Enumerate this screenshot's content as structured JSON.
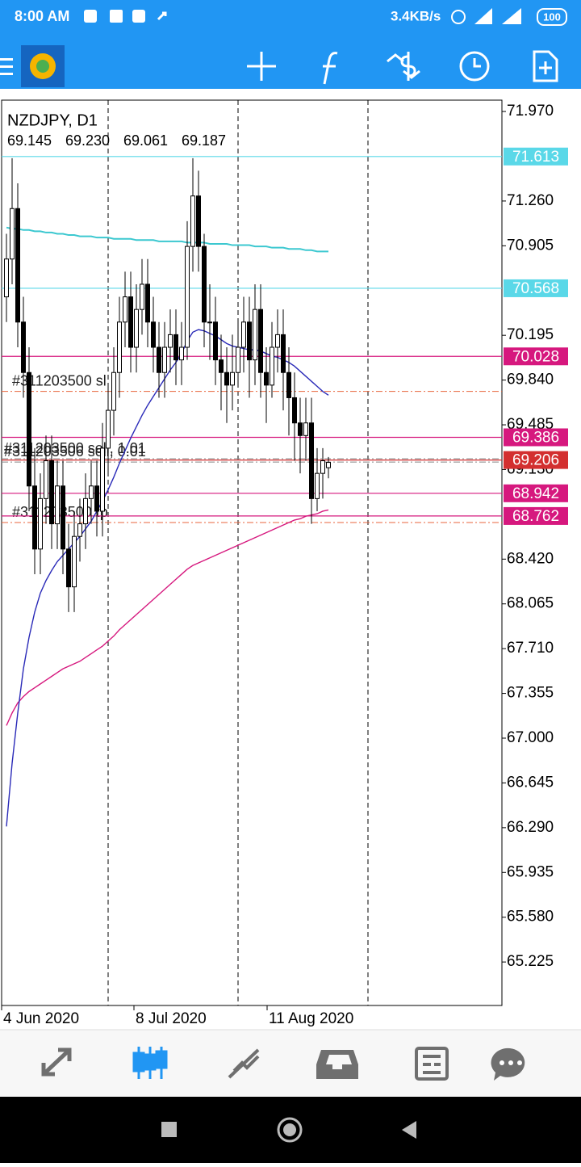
{
  "status_bar": {
    "time": "8:00 AM",
    "speed": "3.4KB/s",
    "battery": "100"
  },
  "chart_data": {
    "type": "candlestick",
    "title": "NZDJPY, D1",
    "ohlc_text": [
      "69.145",
      "69.230",
      "69.061",
      "69.187"
    ],
    "ylim": [
      64.88,
      72.06
    ],
    "yticks": [
      {
        "value": 71.97,
        "label": "71.970"
      },
      {
        "value": 71.26,
        "label": "71.260"
      },
      {
        "value": 70.905,
        "label": "70.905"
      },
      {
        "value": 70.195,
        "label": "70.195"
      },
      {
        "value": 69.84,
        "label": "69.840"
      },
      {
        "value": 69.485,
        "label": "69.485"
      },
      {
        "value": 69.13,
        "label": "69.130"
      },
      {
        "value": 68.42,
        "label": "68.420"
      },
      {
        "value": 68.065,
        "label": "68.065"
      },
      {
        "value": 67.71,
        "label": "67.710"
      },
      {
        "value": 67.355,
        "label": "67.355"
      },
      {
        "value": 67,
        "label": "67.000"
      },
      {
        "value": 66.645,
        "label": "66.645"
      },
      {
        "value": 66.29,
        "label": "66.290"
      },
      {
        "value": 65.935,
        "label": "65.935"
      },
      {
        "value": 65.58,
        "label": "65.580"
      },
      {
        "value": 65.225,
        "label": "65.225"
      }
    ],
    "x_labels": [
      "4 Jun 2020",
      "8 Jul 2020",
      "11 Aug 2020"
    ],
    "open": [
      70.5,
      70.8,
      71.2,
      70.3,
      69.9,
      69.0,
      68.5,
      68.9,
      69.2,
      68.7,
      69.0,
      68.5,
      68.2,
      68.6,
      68.7,
      68.9,
      69.0,
      68.8,
      69.3,
      69.6,
      69.9,
      70.3,
      70.5,
      70.1,
      70.4,
      70.6,
      70.3,
      70.1,
      69.9,
      70.1,
      70.2,
      70.0,
      70.1,
      70.9,
      71.3,
      70.9,
      70.3,
      70.3,
      70.0,
      69.9,
      69.8,
      69.9,
      70.1,
      70.3,
      70.0,
      70.4,
      69.9,
      69.8,
      70.1,
      70.2,
      69.9,
      69.7,
      69.5,
      69.4,
      69.5,
      68.9,
      69.1,
      69.145
    ],
    "high": [
      71.0,
      71.6,
      71.4,
      70.5,
      70.1,
      69.3,
      69.1,
      69.4,
      69.4,
      69.2,
      69.2,
      68.7,
      68.8,
      68.9,
      69.1,
      69.2,
      69.2,
      69.5,
      69.8,
      70.1,
      70.5,
      70.7,
      70.7,
      70.6,
      70.8,
      70.8,
      70.5,
      70.3,
      70.3,
      70.4,
      70.4,
      70.3,
      71.1,
      71.6,
      71.5,
      71.0,
      70.6,
      70.5,
      70.2,
      70.1,
      70.2,
      70.3,
      70.5,
      70.5,
      70.6,
      70.6,
      70.1,
      70.3,
      70.4,
      70.4,
      70.1,
      69.9,
      69.7,
      69.7,
      69.7,
      69.3,
      69.3,
      69.23
    ],
    "low": [
      70.3,
      70.6,
      70.1,
      69.7,
      68.8,
      68.3,
      68.3,
      68.7,
      68.5,
      68.5,
      68.3,
      68.0,
      68.0,
      68.4,
      68.5,
      68.7,
      68.6,
      68.6,
      69.1,
      69.4,
      69.7,
      70.1,
      69.9,
      69.9,
      70.2,
      70.1,
      69.9,
      69.7,
      69.7,
      69.9,
      69.8,
      69.8,
      70.0,
      70.7,
      70.7,
      70.1,
      70.0,
      69.8,
      69.6,
      69.5,
      69.6,
      69.8,
      69.9,
      69.7,
      69.8,
      69.7,
      69.5,
      69.7,
      69.9,
      69.6,
      69.4,
      69.2,
      69.1,
      69.2,
      68.7,
      68.8,
      68.9,
      69.061
    ],
    "close": [
      70.8,
      71.2,
      70.3,
      69.9,
      69.0,
      68.5,
      68.9,
      69.2,
      68.7,
      69.0,
      68.5,
      68.2,
      68.6,
      68.7,
      68.9,
      69.0,
      68.8,
      69.3,
      69.6,
      69.9,
      70.3,
      70.5,
      70.1,
      70.4,
      70.6,
      70.3,
      70.1,
      69.9,
      70.1,
      70.2,
      70.0,
      70.1,
      70.9,
      71.3,
      70.9,
      70.3,
      70.3,
      70.0,
      69.9,
      69.8,
      69.9,
      70.1,
      70.3,
      70.0,
      70.4,
      69.9,
      69.8,
      70.1,
      70.2,
      69.9,
      69.7,
      69.5,
      69.4,
      69.5,
      68.9,
      69.1,
      69.2,
      69.187
    ],
    "moving_averages": [
      {
        "color": "#3cc8d0",
        "values": [
          71.05,
          71.04,
          71.04,
          71.03,
          71.03,
          71.02,
          71.02,
          71.01,
          71.01,
          71.0,
          71.0,
          70.99,
          70.99,
          70.98,
          70.98,
          70.98,
          70.97,
          70.97,
          70.97,
          70.96,
          70.96,
          70.96,
          70.96,
          70.95,
          70.95,
          70.95,
          70.95,
          70.94,
          70.94,
          70.94,
          70.94,
          70.94,
          70.93,
          70.93,
          70.93,
          70.93,
          70.92,
          70.92,
          70.92,
          70.92,
          70.91,
          70.91,
          70.91,
          70.91,
          70.9,
          70.9,
          70.9,
          70.89,
          70.89,
          70.89,
          70.88,
          70.88,
          70.88,
          70.87,
          70.87,
          70.86,
          70.86,
          70.86
        ]
      },
      {
        "color": "#d6187e",
        "values": [
          67.1,
          67.2,
          67.28,
          67.33,
          67.37,
          67.4,
          67.43,
          67.46,
          67.49,
          67.52,
          67.55,
          67.57,
          67.59,
          67.61,
          67.64,
          67.67,
          67.7,
          67.73,
          67.77,
          67.81,
          67.86,
          67.9,
          67.94,
          67.98,
          68.02,
          68.06,
          68.1,
          68.14,
          68.18,
          68.22,
          68.26,
          68.3,
          68.34,
          68.37,
          68.39,
          68.41,
          68.43,
          68.45,
          68.47,
          68.49,
          68.51,
          68.53,
          68.55,
          68.57,
          68.59,
          68.61,
          68.63,
          68.65,
          68.67,
          68.69,
          68.71,
          68.73,
          68.74,
          68.76,
          68.77,
          68.78,
          68.8,
          68.81
        ]
      },
      {
        "color": "#2a2ab8",
        "values": [
          66.3,
          66.8,
          67.2,
          67.55,
          67.8,
          68.0,
          68.15,
          68.25,
          68.33,
          68.4,
          68.45,
          68.5,
          68.55,
          68.6,
          68.66,
          68.72,
          68.8,
          68.88,
          68.97,
          69.07,
          69.18,
          69.28,
          69.38,
          69.47,
          69.56,
          69.64,
          69.71,
          69.78,
          69.85,
          69.92,
          69.98,
          70.05,
          70.15,
          70.22,
          70.24,
          70.23,
          70.21,
          70.19,
          70.16,
          70.13,
          70.11,
          70.1,
          70.09,
          70.08,
          70.08,
          70.07,
          70.05,
          70.03,
          70.02,
          70.0,
          69.98,
          69.95,
          69.91,
          69.87,
          69.83,
          69.79,
          69.75,
          69.72
        ]
      }
    ],
    "levels": [
      {
        "value": 71.613,
        "color": "#5ad8e8"
      },
      {
        "value": 70.568,
        "color": "#5ad8e8"
      },
      {
        "value": 70.028,
        "color": "#d6187e"
      },
      {
        "value": 69.386,
        "color": "#d6187e"
      },
      {
        "value": 68.942,
        "color": "#d6187e"
      },
      {
        "value": 68.762,
        "color": "#d6187e"
      },
      {
        "value": 69.206,
        "color": "#d32f2f"
      }
    ],
    "orders": [
      {
        "label": "#311203500 sl",
        "price": 69.75,
        "color": "#e8643c"
      },
      {
        "label": "#311203500 sell, 1.01",
        "price": 69.216,
        "color": "#888888"
      },
      {
        "label": "#311203506 sell, 0.01",
        "price": 69.19,
        "color": "#888888"
      },
      {
        "label": "#311203500 tp",
        "price": 68.71,
        "color": "#e8643c"
      }
    ]
  }
}
